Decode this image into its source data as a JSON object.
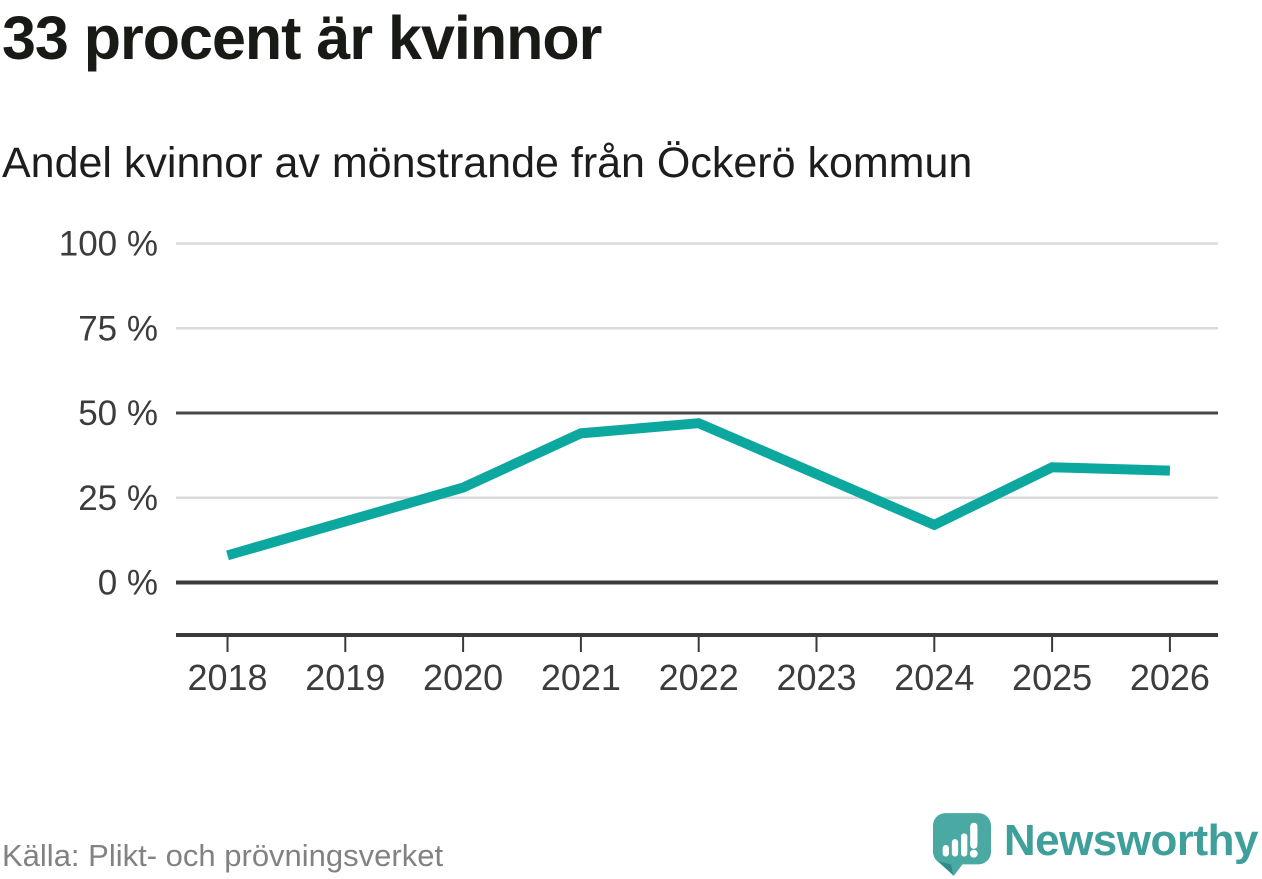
{
  "header": {
    "title": "33 procent är kvinnor",
    "subtitle": "Andel kvinnor av mönstrande från Öckerö kommun"
  },
  "chart_data": {
    "type": "line",
    "title": "33 procent är kvinnor",
    "subtitle": "Andel kvinnor av mönstrande från Öckerö kommun",
    "categories": [
      "2018",
      "2019",
      "2020",
      "2021",
      "2022",
      "2023",
      "2024",
      "2025",
      "2026"
    ],
    "series": [
      {
        "name": "Andel kvinnor av mönstrande",
        "values": [
          8,
          18,
          28,
          44,
          47,
          32,
          17,
          34,
          33
        ]
      }
    ],
    "unit": "%",
    "xlabel": "",
    "ylabel": "",
    "ylim": [
      0,
      100
    ],
    "yticks": [
      {
        "value": 0,
        "label": "0 %"
      },
      {
        "value": 25,
        "label": "25 %"
      },
      {
        "value": 50,
        "label": "50 %"
      },
      {
        "value": 75,
        "label": "75 %"
      },
      {
        "value": 100,
        "label": "100 %"
      }
    ],
    "emphasized_gridlines": [
      0,
      50
    ],
    "grid": "horizontal",
    "legend": "none"
  },
  "footer": {
    "source": "Källa: Plikt- och prövningsverket",
    "brand": "Newsworthy"
  },
  "colors": {
    "line": "#0ca89f",
    "grid_light": "#dadada",
    "grid_dark": "#474747",
    "baseline_dark": "#3a3a3a",
    "axis": "#3a3a3a",
    "tick_label": "#3c3c3c",
    "title": "#181a15",
    "subtitle": "#1d1d1d",
    "source_text": "#828282",
    "brand_teal": "#3f9f9b",
    "logo_fill": "#4ba9a4",
    "logo_shade": "#2e8b87",
    "logo_glyph": "#ffffff"
  }
}
